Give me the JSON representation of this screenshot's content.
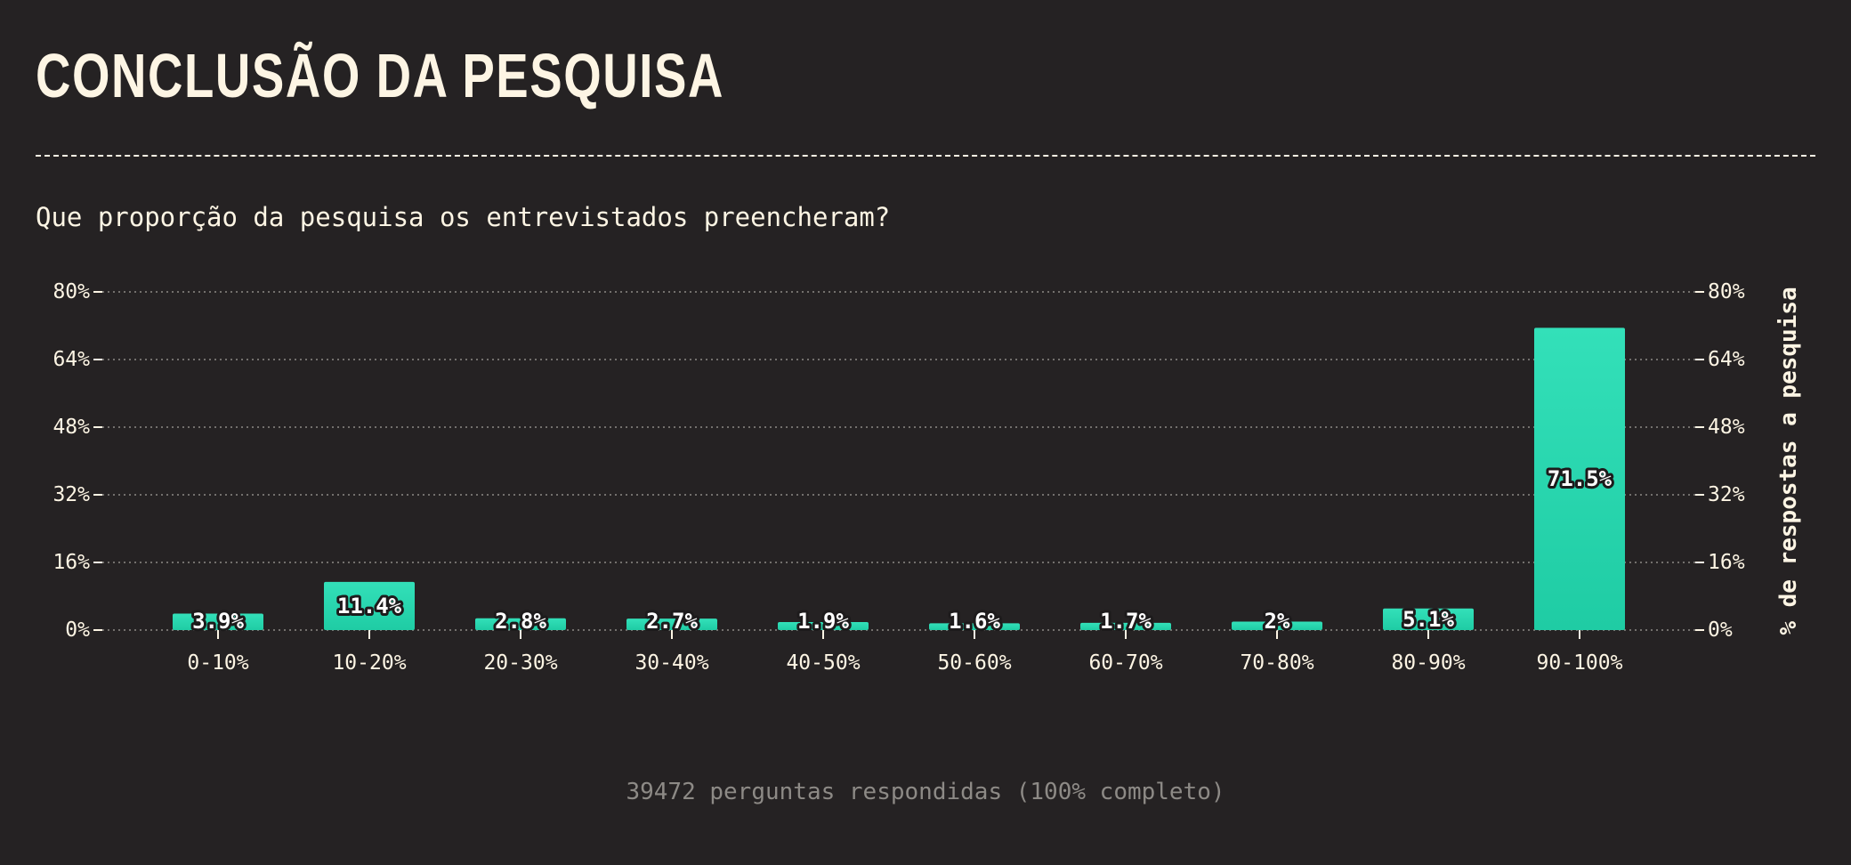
{
  "header": {
    "title": "CONCLUSÃO DA PESQUISA"
  },
  "colors": {
    "background": "#252223",
    "text": "#fdf5e4",
    "bar_top": "#33e0b9",
    "bar_bottom": "#1fcca4",
    "grid": "#8d8a86",
    "footer": "#8d8a86"
  },
  "chart_data": {
    "type": "bar",
    "title": "Que proporção da pesquisa os entrevistados preencheram?",
    "xlabel": "",
    "ylabel": "% de respostas a pesquisa",
    "categories": [
      "0-10%",
      "10-20%",
      "20-30%",
      "30-40%",
      "40-50%",
      "50-60%",
      "60-70%",
      "70-80%",
      "80-90%",
      "90-100%"
    ],
    "values": [
      3.9,
      11.4,
      2.8,
      2.7,
      1.9,
      1.6,
      1.7,
      2,
      5.1,
      71.5
    ],
    "data_labels": [
      "3.9%",
      "11.4%",
      "2.8%",
      "2.7%",
      "1.9%",
      "1.6%",
      "1.7%",
      "2%",
      "5.1%",
      "71.5%"
    ],
    "ylim": [
      0,
      80
    ],
    "yticks": [
      0,
      16,
      32,
      48,
      64,
      80
    ],
    "ytick_labels": [
      "0%",
      "16%",
      "32%",
      "48%",
      "64%",
      "80%"
    ],
    "grid": true,
    "footer": "39472 perguntas respondidas (100% completo)"
  }
}
